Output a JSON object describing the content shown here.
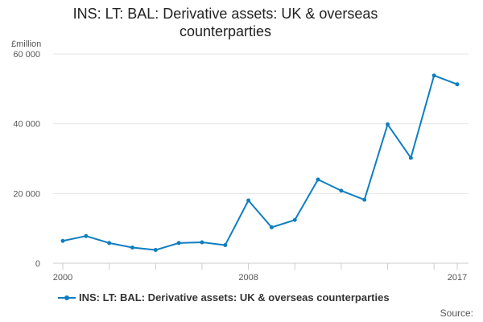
{
  "chart_data": {
    "type": "line",
    "title": "INS: LT: BAL: Derivative assets: UK & overseas counterparties",
    "ylabel": "£million",
    "xlabel": "",
    "x": [
      2000,
      2001,
      2002,
      2003,
      2004,
      2005,
      2006,
      2007,
      2008,
      2009,
      2010,
      2011,
      2012,
      2013,
      2014,
      2015,
      2016,
      2017
    ],
    "series": [
      {
        "name": "INS: LT: BAL: Derivative assets: UK & overseas counterparties",
        "color": "#0f7ec0",
        "values": [
          6400,
          7800,
          5800,
          4500,
          3800,
          5800,
          6000,
          5200,
          18000,
          10300,
          12400,
          24000,
          20800,
          18200,
          39800,
          30200,
          53800,
          51300
        ]
      }
    ],
    "x_tick_labels": [
      "2000",
      "2008",
      "2017"
    ],
    "x_tick_label_years": [
      2000,
      2008,
      2017
    ],
    "y_ticks": [
      0,
      20000,
      40000,
      60000
    ],
    "y_tick_labels": [
      "0",
      "20 000",
      "40 000",
      "60 000"
    ],
    "xlim": [
      2000,
      2017
    ],
    "ylim": [
      0,
      60000
    ],
    "grid": true,
    "legend_position": "bottom-left",
    "source_label": "Source:"
  }
}
